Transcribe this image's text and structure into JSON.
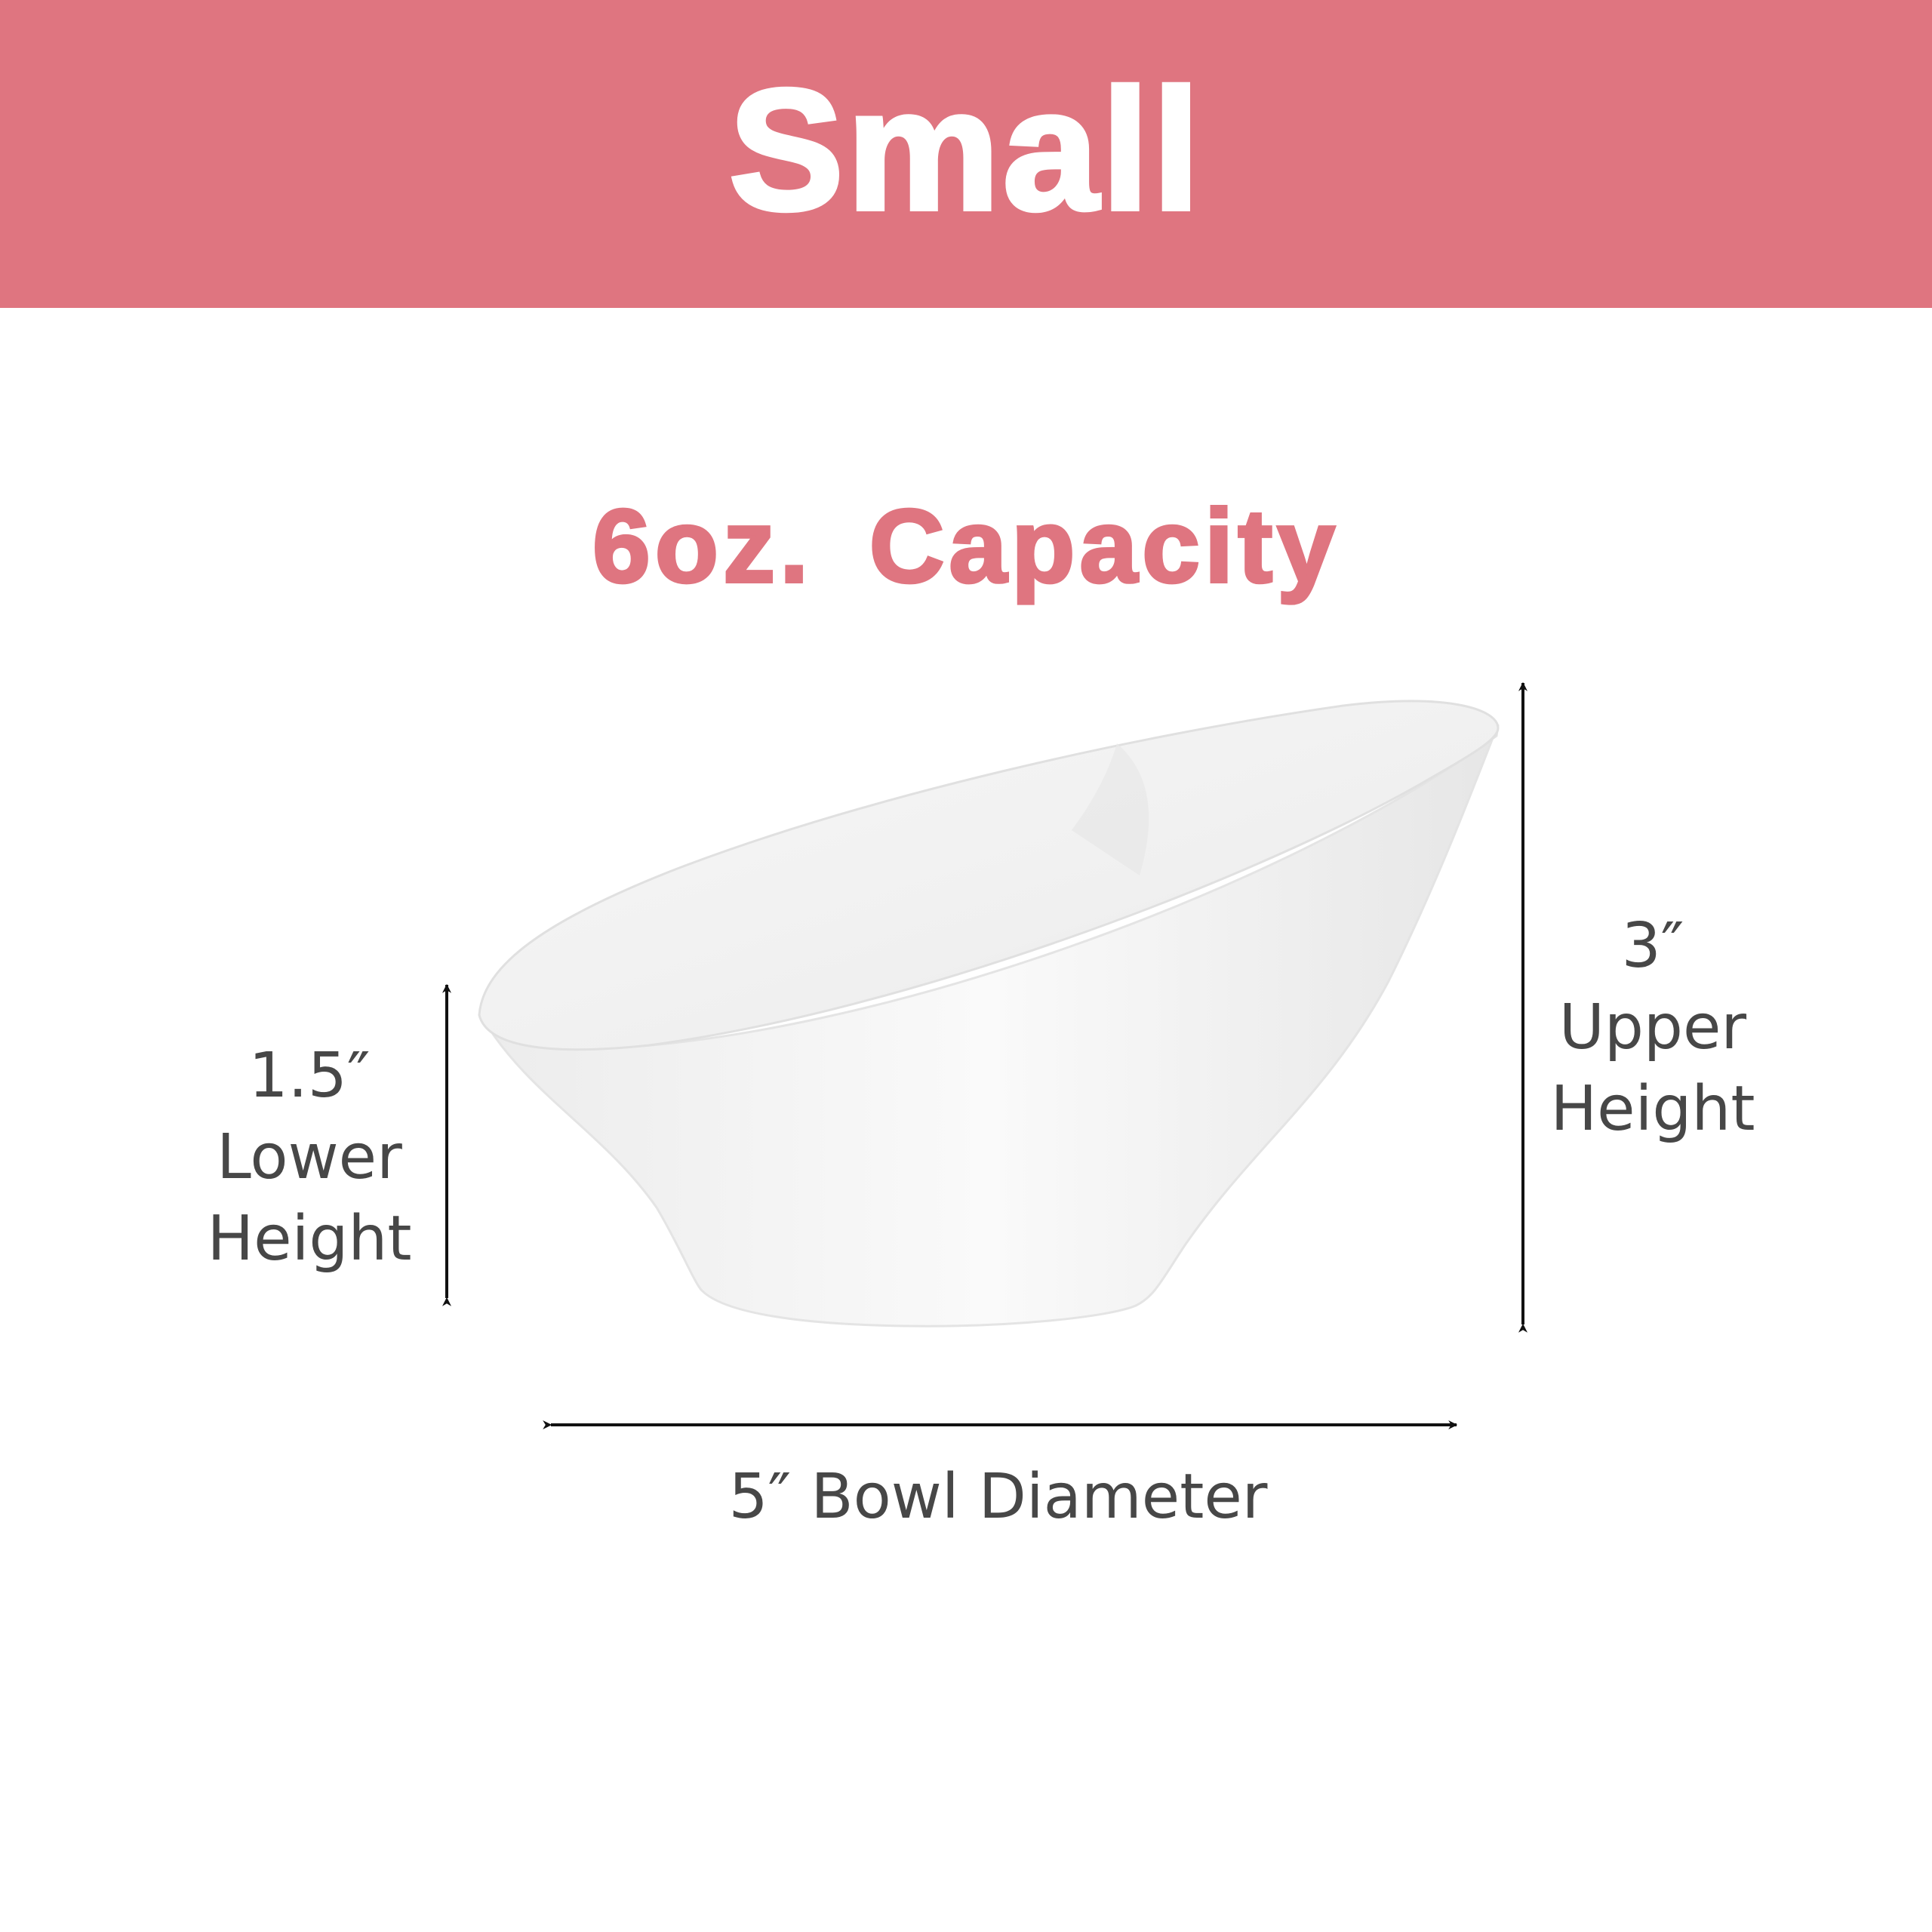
{
  "banner": {
    "title": "Small"
  },
  "capacity": {
    "text": "6oz. Capacity"
  },
  "dimensions": {
    "lower": {
      "value": "1.5″",
      "line1": "Lower",
      "line2": "Height"
    },
    "upper": {
      "value": "3″",
      "line1": "Upper",
      "line2": "Height"
    },
    "diameter": {
      "label": "5″ Bowl Diameter"
    }
  },
  "colors": {
    "accent": "#df7580",
    "text": "#474747",
    "arrow": "#111111",
    "bowl": "#f4f4f4"
  }
}
